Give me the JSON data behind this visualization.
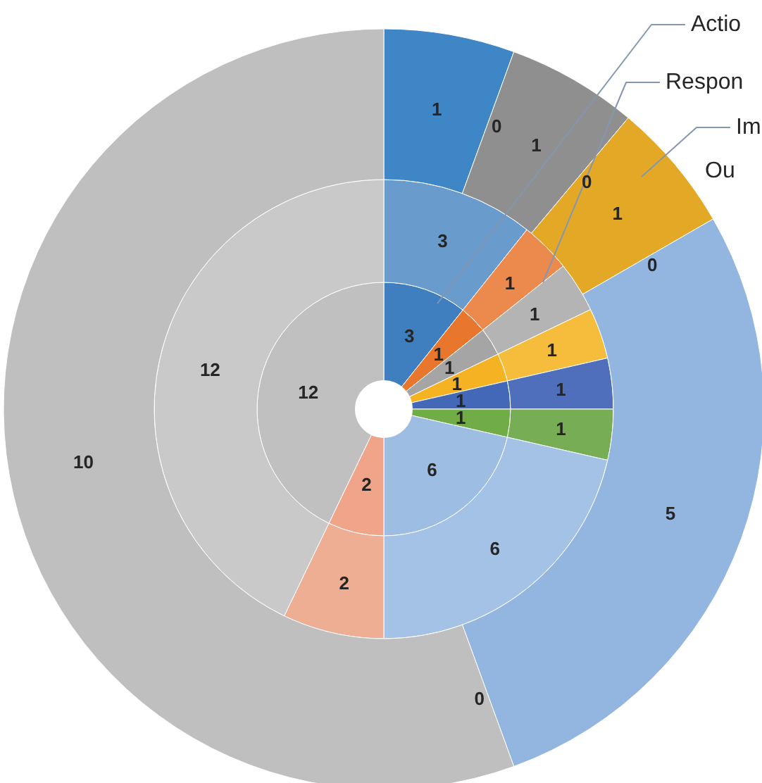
{
  "chart_data": {
    "type": "donut",
    "categories": [
      null,
      null,
      null,
      null,
      null,
      null,
      null,
      null,
      null
    ],
    "series": [
      {
        "values": [
          3,
          1,
          1,
          1,
          1,
          1,
          6,
          2,
          12
        ],
        "value_labels": [
          "3",
          "1",
          "1",
          "1",
          "1",
          "1",
          "6",
          "2",
          "12"
        ],
        "colors": [
          "#3f7fbf",
          "#e8762d",
          "#a5a5a5",
          "#f5b324",
          "#4468b8",
          "#70ad47",
          "#9dbde3",
          "#f0a58a",
          "#c0c0c0"
        ]
      },
      {
        "values": [
          3,
          1,
          1,
          1,
          1,
          1,
          6,
          2,
          12
        ],
        "value_labels": [
          "3",
          "1",
          "1",
          "1",
          "1",
          "1",
          "6",
          "2",
          "12"
        ],
        "colors": [
          "#6a9bcd",
          "#ec8a4d",
          "#b4b4b4",
          "#f6bd3c",
          "#4f6fbd",
          "#77ad54",
          "#a3c2e5",
          "#eeae94",
          "#c9c9c9"
        ]
      },
      {
        "values": [
          1,
          0,
          1,
          0,
          1,
          0,
          5,
          0,
          10
        ],
        "value_labels": [
          "1",
          "0",
          "1",
          "0",
          "1",
          "0",
          "5",
          "0",
          "10"
        ],
        "colors": [
          "#3f86c6",
          "#e8762d",
          "#8f8f8f",
          "#e3a826",
          "#e3a826",
          "#4468b8",
          "#93b6e0",
          "#f0a58a",
          "#bfbfbf"
        ]
      }
    ],
    "annotations": [
      "Actio",
      "Respon",
      "Im",
      "Ou"
    ]
  }
}
